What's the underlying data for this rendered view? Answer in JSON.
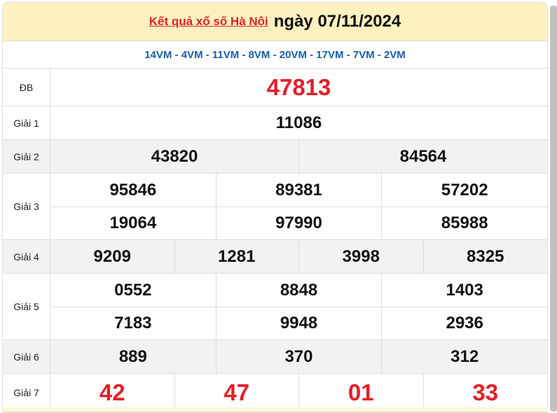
{
  "header": {
    "link": "Kết quả xổ số Hà Nội",
    "date": "ngày 07/11/2024"
  },
  "codes": "14VM - 4VM - 11VM - 8VM - 20VM - 17VM - 7VM - 2VM",
  "prizes": [
    {
      "label": "ĐB",
      "rows": [
        [
          "47813"
        ]
      ]
    },
    {
      "label": "Giải 1",
      "rows": [
        [
          "11086"
        ]
      ]
    },
    {
      "label": "Giải 2",
      "rows": [
        [
          "43820",
          "84564"
        ]
      ]
    },
    {
      "label": "Giải 3",
      "rows": [
        [
          "95846",
          "89381",
          "57202"
        ],
        [
          "19064",
          "97990",
          "85988"
        ]
      ]
    },
    {
      "label": "Giải 4",
      "rows": [
        [
          "9209",
          "1281",
          "3998",
          "8325"
        ]
      ]
    },
    {
      "label": "Giải 5",
      "rows": [
        [
          "0552",
          "8848",
          "1403"
        ],
        [
          "7183",
          "9948",
          "2936"
        ]
      ]
    },
    {
      "label": "Giải 6",
      "rows": [
        [
          "889",
          "370",
          "312"
        ]
      ]
    },
    {
      "label": "Giải 7",
      "rows": [
        [
          "42",
          "47",
          "01",
          "33"
        ]
      ]
    }
  ],
  "colors": {
    "accent_red": "#e1202a",
    "code_blue": "#1a5ea8",
    "header_bg": "#fdf1bf"
  }
}
